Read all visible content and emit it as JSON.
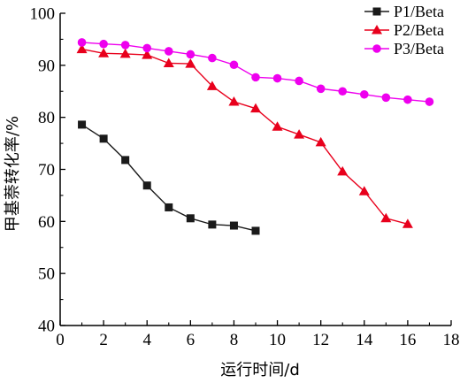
{
  "chart_data": {
    "type": "line",
    "xlabel": "运行时间/d",
    "ylabel": "甲基萘转化率/%",
    "xlim": [
      0,
      18
    ],
    "ylim": [
      40,
      100
    ],
    "xticks": [
      0,
      2,
      4,
      6,
      8,
      10,
      12,
      14,
      16,
      18
    ],
    "yticks": [
      40,
      50,
      60,
      70,
      80,
      90,
      100
    ],
    "legend_position": "top-right",
    "grid": false,
    "series": [
      {
        "name": "P1/Beta",
        "marker": "square",
        "color": "#1a1a1a",
        "x": [
          1,
          2,
          3,
          4,
          5,
          6,
          7,
          8,
          9
        ],
        "y": [
          78.6,
          75.9,
          71.8,
          66.9,
          62.7,
          60.6,
          59.4,
          59.2,
          58.2
        ]
      },
      {
        "name": "P2/Beta",
        "marker": "triangle",
        "color": "#e8001c",
        "x": [
          1,
          2,
          3,
          4,
          5,
          6,
          7,
          8,
          9,
          10,
          11,
          12,
          13,
          14,
          15,
          16
        ],
        "y": [
          93.1,
          92.3,
          92.2,
          92.0,
          90.4,
          90.3,
          86.0,
          83.0,
          81.7,
          78.2,
          76.7,
          75.2,
          69.6,
          65.8,
          60.6,
          59.5
        ]
      },
      {
        "name": "P3/Beta",
        "marker": "circle",
        "color": "#ee00ee",
        "x": [
          1,
          2,
          3,
          4,
          5,
          6,
          7,
          8,
          9,
          10,
          11,
          12,
          13,
          14,
          15,
          16,
          17
        ],
        "y": [
          94.4,
          94.1,
          93.9,
          93.3,
          92.7,
          92.1,
          91.4,
          90.1,
          87.7,
          87.5,
          87.0,
          85.5,
          85.0,
          84.4,
          83.8,
          83.4,
          83.0
        ]
      }
    ]
  }
}
